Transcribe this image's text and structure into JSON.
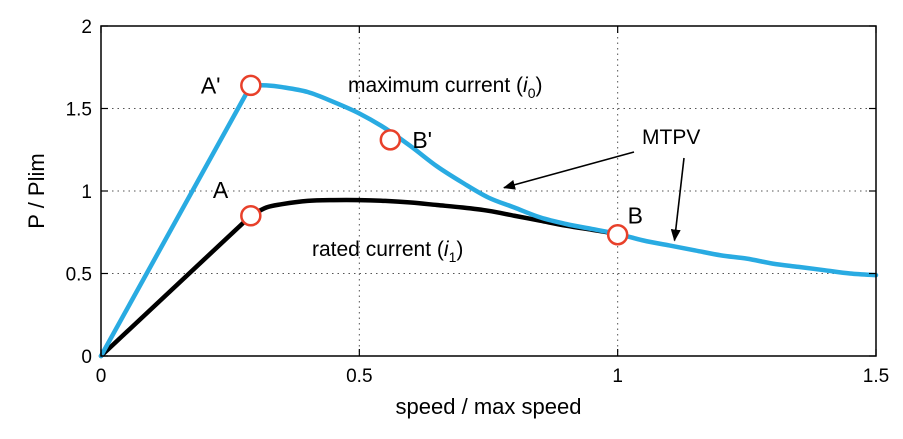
{
  "chart_data": {
    "type": "line",
    "xlabel": "speed / max speed",
    "ylabel": "P / Plim",
    "xlim": [
      0,
      1.5
    ],
    "ylim": [
      0,
      2
    ],
    "xticks": [
      0,
      0.5,
      1,
      1.5
    ],
    "xtick_labels": [
      "0",
      "0.5",
      "1",
      "1.5"
    ],
    "yticks": [
      0,
      0.5,
      1,
      1.5,
      2
    ],
    "ytick_labels": [
      "0",
      "0.5",
      "1",
      "1.5",
      "2"
    ],
    "grid": true,
    "grid_style": "dotted",
    "colors": {
      "maximum": "#29abe2",
      "rated": "#000000",
      "marker": "#e8402a"
    },
    "series": [
      {
        "id": "maximum",
        "label_main": "maximum current (",
        "label_var": "i",
        "label_sub": "0",
        "label_close": ")",
        "x": [
          0,
          0.29,
          0.32,
          0.35,
          0.4,
          0.45,
          0.5,
          0.55,
          0.6,
          0.65,
          0.7,
          0.75,
          0.8,
          0.85,
          0.9,
          0.95,
          1.0,
          1.05,
          1.1,
          1.15,
          1.2,
          1.25,
          1.3,
          1.35,
          1.4,
          1.45,
          1.5
        ],
        "y": [
          0,
          1.64,
          1.64,
          1.63,
          1.6,
          1.54,
          1.47,
          1.38,
          1.27,
          1.15,
          1.05,
          0.96,
          0.9,
          0.84,
          0.8,
          0.77,
          0.74,
          0.7,
          0.67,
          0.64,
          0.61,
          0.59,
          0.56,
          0.54,
          0.52,
          0.5,
          0.49
        ]
      },
      {
        "id": "rated",
        "label_main": "rated current (",
        "label_var": "i",
        "label_sub": "1",
        "label_close": ")",
        "x": [
          0,
          0.29,
          0.32,
          0.35,
          0.4,
          0.45,
          0.5,
          0.55,
          0.6,
          0.65,
          0.7,
          0.75,
          0.8,
          0.85,
          0.9,
          0.95,
          1.0
        ],
        "y": [
          0,
          0.85,
          0.9,
          0.92,
          0.94,
          0.945,
          0.945,
          0.94,
          0.93,
          0.915,
          0.9,
          0.88,
          0.85,
          0.82,
          0.79,
          0.765,
          0.74
        ]
      }
    ],
    "points": [
      {
        "label": "A'",
        "x": 0.29,
        "y": 1.64
      },
      {
        "label": "B'",
        "x": 0.56,
        "y": 1.31
      },
      {
        "label": "A",
        "x": 0.29,
        "y": 0.85
      },
      {
        "label": "B",
        "x": 1.0,
        "y": 0.735
      }
    ],
    "annotation": {
      "text": "MTPV",
      "arrows_to": [
        {
          "x": 0.78,
          "y": 1.02
        },
        {
          "x": 1.11,
          "y": 0.7
        }
      ]
    }
  }
}
